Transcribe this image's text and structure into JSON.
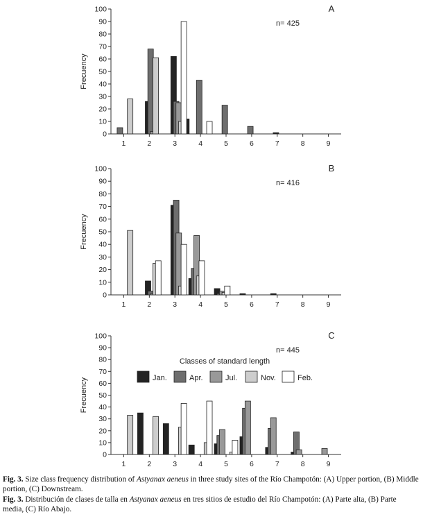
{
  "colors": {
    "jan": "#232323",
    "apr": "#6e6e6e",
    "jul": "#999999",
    "nov": "#cdcdcd",
    "feb": "#ffffff",
    "stroke": "#222222"
  },
  "legend": {
    "title": "Classes of standard length",
    "items": [
      "Jan.",
      "Apr.",
      "Jul.",
      "Nov.",
      "Feb."
    ]
  },
  "chart_data": [
    {
      "type": "bar",
      "panel": "A",
      "n_label": "n= 425",
      "ylabel": "Frecuency",
      "ylim": [
        0,
        100
      ],
      "yticks": [
        0,
        10,
        20,
        30,
        40,
        50,
        60,
        70,
        80,
        90,
        100
      ],
      "xticks": [
        1,
        2,
        3,
        4,
        5,
        6,
        7,
        8,
        9
      ],
      "xlim": [
        0.5,
        9.5
      ],
      "series": [
        {
          "key": "jan",
          "points": [
            [
              1.95,
              26
            ],
            [
              2.95,
              62
            ],
            [
              3.45,
              12
            ],
            [
              6.95,
              1
            ]
          ]
        },
        {
          "key": "apr",
          "points": [
            [
              0.85,
              5
            ],
            [
              2.05,
              68
            ],
            [
              3.05,
              26
            ],
            [
              3.95,
              43
            ],
            [
              4.95,
              23
            ],
            [
              5.95,
              6
            ]
          ]
        },
        {
          "key": "jul",
          "points": [
            [
              2.15,
              2
            ],
            [
              3.15,
              25
            ]
          ]
        },
        {
          "key": "nov",
          "points": [
            [
              1.25,
              28
            ],
            [
              2.25,
              61
            ],
            [
              3.25,
              10
            ]
          ]
        },
        {
          "key": "feb",
          "points": [
            [
              3.35,
              90
            ],
            [
              4.35,
              10
            ]
          ]
        }
      ]
    },
    {
      "type": "bar",
      "panel": "B",
      "n_label": "n= 416",
      "ylabel": "Frecuency",
      "ylim": [
        0,
        100
      ],
      "yticks": [
        0,
        10,
        20,
        30,
        40,
        50,
        60,
        70,
        80,
        90,
        100
      ],
      "xticks": [
        1,
        2,
        3,
        4,
        5,
        6,
        7,
        8,
        9
      ],
      "xlim": [
        0.5,
        9.5
      ],
      "series": [
        {
          "key": "jan",
          "points": [
            [
              1.95,
              11
            ],
            [
              2.95,
              71
            ],
            [
              3.65,
              13
            ],
            [
              4.65,
              5
            ],
            [
              5.65,
              1
            ],
            [
              6.85,
              1
            ]
          ]
        },
        {
          "key": "apr",
          "points": [
            [
              2.05,
              3
            ],
            [
              3.05,
              75
            ],
            [
              3.75,
              21
            ],
            [
              4.75,
              1
            ]
          ]
        },
        {
          "key": "jul",
          "points": [
            [
              2.15,
              1
            ],
            [
              3.15,
              49
            ],
            [
              3.85,
              47
            ],
            [
              4.85,
              3
            ]
          ]
        },
        {
          "key": "nov",
          "points": [
            [
              1.25,
              51
            ],
            [
              2.25,
              25
            ],
            [
              3.25,
              7
            ],
            [
              3.95,
              15
            ],
            [
              4.95,
              2
            ]
          ]
        },
        {
          "key": "feb",
          "points": [
            [
              2.35,
              27
            ],
            [
              3.35,
              40
            ],
            [
              4.05,
              27
            ],
            [
              5.05,
              7
            ]
          ]
        }
      ]
    },
    {
      "type": "bar",
      "panel": "C",
      "n_label": "n= 445",
      "ylabel": "Frecuency",
      "ylim": [
        0,
        100
      ],
      "yticks": [
        0,
        10,
        20,
        30,
        40,
        50,
        60,
        70,
        80,
        90,
        100
      ],
      "xticks": [
        1,
        2,
        3,
        4,
        5,
        6,
        7,
        8,
        9
      ],
      "xlim": [
        0.5,
        9.5
      ],
      "series": [
        {
          "key": "jan",
          "points": [
            [
              1.65,
              35
            ],
            [
              2.65,
              26
            ],
            [
              3.65,
              8
            ],
            [
              4.65,
              9
            ],
            [
              5.65,
              15
            ],
            [
              6.65,
              6
            ],
            [
              7.65,
              2
            ]
          ]
        },
        {
          "key": "apr",
          "points": [
            [
              4.75,
              16
            ],
            [
              5.75,
              39
            ],
            [
              6.75,
              22
            ],
            [
              7.75,
              19
            ]
          ]
        },
        {
          "key": "jul",
          "points": [
            [
              4.85,
              21
            ],
            [
              5.85,
              45
            ],
            [
              6.85,
              31
            ],
            [
              7.85,
              4
            ],
            [
              8.85,
              5
            ]
          ]
        },
        {
          "key": "nov",
          "points": [
            [
              1.25,
              33
            ],
            [
              2.25,
              32
            ],
            [
              3.25,
              23
            ],
            [
              4.25,
              10
            ],
            [
              5.25,
              2
            ]
          ]
        },
        {
          "key": "feb",
          "points": [
            [
              3.35,
              43
            ],
            [
              4.35,
              45
            ],
            [
              5.35,
              12
            ]
          ]
        }
      ]
    }
  ],
  "caption": {
    "fig_label": "Fig. 3.",
    "en_pre": " Size class frequency distribution of ",
    "species": "Astyanax aeneus",
    "en_post": " in three study sites of the Río Champotón: (A) Upper portion, (B) Middle portion, (C) Downstream.",
    "es_pre": " Distribución de clases de talla en ",
    "es_post": " en tres sitios de estudio del Río Champotón: (A) Parte alta, (B) Parte media, (C) Río Abajo."
  }
}
